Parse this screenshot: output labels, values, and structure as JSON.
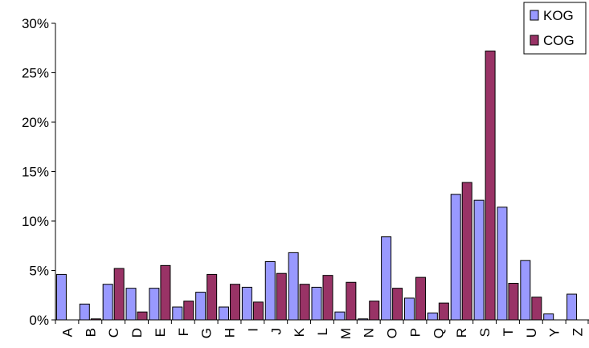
{
  "chart_data": {
    "type": "bar",
    "categories": [
      "A",
      "B",
      "C",
      "D",
      "E",
      "F",
      "G",
      "H",
      "I",
      "J",
      "K",
      "L",
      "M",
      "N",
      "O",
      "P",
      "Q",
      "R",
      "S",
      "T",
      "U",
      "Y",
      "Z"
    ],
    "series": [
      {
        "name": "KOG",
        "color": "#9999ff",
        "values": [
          4.6,
          1.6,
          3.6,
          3.2,
          3.2,
          1.3,
          2.8,
          1.3,
          3.3,
          5.9,
          6.8,
          3.3,
          0.8,
          0.1,
          8.4,
          2.2,
          0.7,
          12.7,
          12.1,
          11.4,
          6.0,
          0.6,
          2.6
        ]
      },
      {
        "name": "COG",
        "color": "#993366",
        "values": [
          0,
          0.1,
          5.2,
          0.8,
          5.5,
          1.9,
          4.6,
          3.6,
          1.8,
          4.7,
          3.6,
          4.5,
          3.8,
          1.9,
          3.2,
          4.3,
          1.7,
          13.9,
          27.2,
          3.7,
          2.3,
          0,
          0
        ]
      }
    ],
    "y_tick_labels": [
      "0%",
      "5%",
      "10%",
      "15%",
      "20%",
      "25%",
      "30%"
    ],
    "y_ticks": [
      0,
      5,
      10,
      15,
      20,
      25,
      30
    ],
    "ylim": [
      0,
      30
    ],
    "grid": false,
    "legend_position": "top-right",
    "title": "",
    "xlabel": "",
    "ylabel": ""
  }
}
